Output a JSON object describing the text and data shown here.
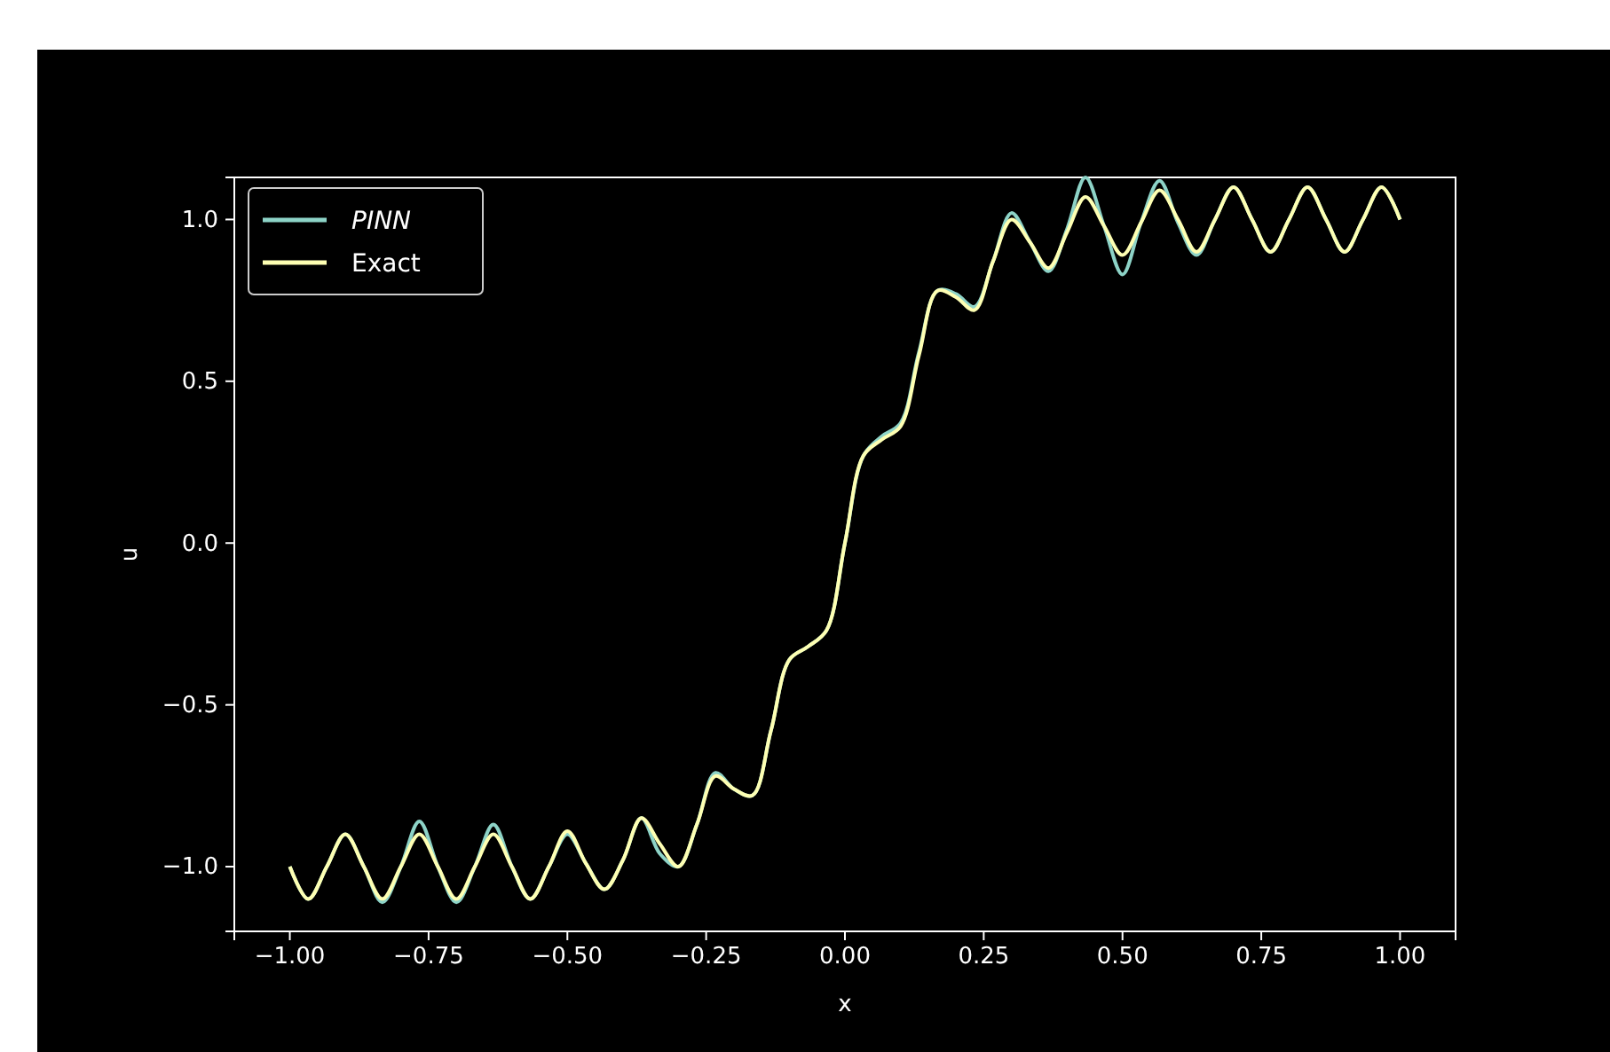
{
  "chart_data": {
    "type": "line",
    "xlabel": "x",
    "ylabel": "u",
    "x": [
      -1,
      -0.9667,
      -0.9333,
      -0.9,
      -0.8667,
      -0.8333,
      -0.8,
      -0.7667,
      -0.7333,
      -0.7,
      -0.6667,
      -0.6333,
      -0.6,
      -0.5667,
      -0.5333,
      -0.5,
      -0.4667,
      -0.4333,
      -0.4,
      -0.3667,
      -0.3333,
      -0.3,
      -0.2667,
      -0.2333,
      -0.2,
      -0.1667,
      -0.1333,
      -0.1,
      -0.0667,
      -0.0333,
      0,
      0.0333,
      0.0667,
      0.1,
      0.1333,
      0.1667,
      0.2,
      0.2333,
      0.2667,
      0.3,
      0.3333,
      0.3667,
      0.4,
      0.4333,
      0.4667,
      0.5,
      0.5333,
      0.5667,
      0.6,
      0.6333,
      0.6667,
      0.7,
      0.7333,
      0.7667,
      0.8,
      0.8333,
      0.8667,
      0.9,
      0.9333,
      0.9667,
      1
    ],
    "series": [
      {
        "name": "PINN",
        "color": "#8dd3c7",
        "values": [
          -1,
          -1.1,
          -1,
          -0.9,
          -1,
          -1.11,
          -1,
          -0.86,
          -1,
          -1.11,
          -1,
          -0.87,
          -1,
          -1.1,
          -1,
          -0.9,
          -0.99,
          -1.07,
          -0.98,
          -0.85,
          -0.96,
          -1,
          -0.87,
          -0.71,
          -0.76,
          -0.78,
          -0.58,
          -0.36,
          -0.32,
          -0.27,
          0,
          0.27,
          0.33,
          0.37,
          0.59,
          0.78,
          0.77,
          0.73,
          0.87,
          1.02,
          0.93,
          0.84,
          0.97,
          1.13,
          0.98,
          0.83,
          0.99,
          1.12,
          0.99,
          0.89,
          1,
          1.1,
          1,
          0.9,
          1,
          1.1,
          1,
          0.9,
          1,
          1.1,
          1
        ]
      },
      {
        "name": "Exact",
        "color": "#feffb3",
        "values": [
          -1,
          -1.1,
          -1,
          -0.9,
          -1,
          -1.1,
          -1,
          -0.9,
          -1,
          -1.1,
          -1,
          -0.9,
          -1,
          -1.1,
          -1,
          -0.89,
          -0.99,
          -1.07,
          -0.98,
          -0.85,
          -0.93,
          -1,
          -0.87,
          -0.72,
          -0.76,
          -0.78,
          -0.58,
          -0.36,
          -0.32,
          -0.27,
          0,
          0.27,
          0.32,
          0.36,
          0.58,
          0.78,
          0.76,
          0.72,
          0.87,
          1,
          0.93,
          0.85,
          0.96,
          1.07,
          0.98,
          0.89,
          0.99,
          1.09,
          1,
          0.9,
          1,
          1.1,
          1,
          0.9,
          1,
          1.1,
          1,
          0.9,
          1,
          1.1,
          1
        ]
      }
    ],
    "xlim": [
      -1.1,
      1.1
    ],
    "ylim": [
      -1.2,
      1.13
    ],
    "xticks": [
      {
        "value": -1,
        "label": "−1.00"
      },
      {
        "value": -0.75,
        "label": "−0.75"
      },
      {
        "value": -0.5,
        "label": "−0.50"
      },
      {
        "value": -0.25,
        "label": "−0.25"
      },
      {
        "value": 0,
        "label": "0.00"
      },
      {
        "value": 0.25,
        "label": "0.25"
      },
      {
        "value": 0.5,
        "label": "0.50"
      },
      {
        "value": 0.75,
        "label": "0.75"
      },
      {
        "value": 1,
        "label": "1.00"
      }
    ],
    "yticks": [
      {
        "value": -1,
        "label": "−1.0"
      },
      {
        "value": -0.5,
        "label": "−0.5"
      },
      {
        "value": 0,
        "label": "0.0"
      },
      {
        "value": 0.5,
        "label": "0.5"
      },
      {
        "value": 1,
        "label": "1.0"
      }
    ],
    "legend": "top left"
  }
}
